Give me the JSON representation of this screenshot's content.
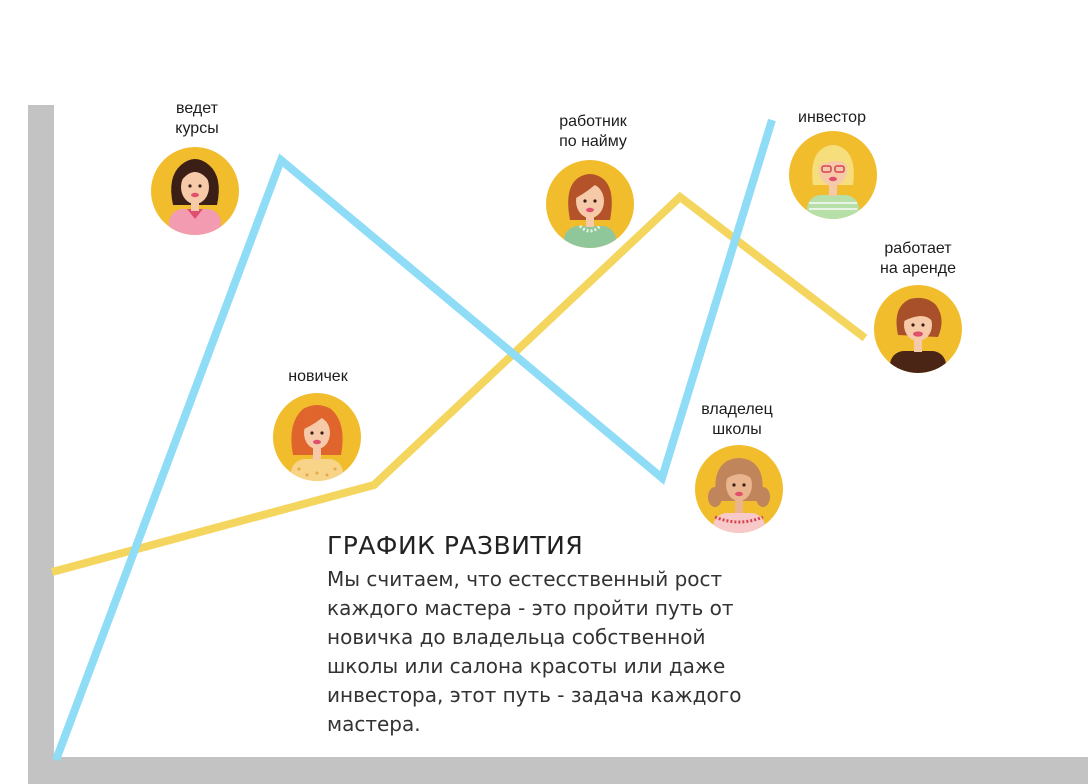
{
  "colors": {
    "blue_line": "#8fdcf7",
    "yellow_line": "#f4d65e",
    "axis": "#c3c3c3",
    "avatar_background": "#f2bd2c"
  },
  "labels": {
    "courses": "ведет\nкурсы",
    "employee": "работник\nпо найму",
    "investor": "инвестор",
    "renter": "работает\nна аренде",
    "novice": "новичек",
    "owner": "владелец\nшколы"
  },
  "title": "ГРАФИК РАЗВИТИЯ",
  "description": "Мы считаем, что естесственный рост каждого мастера - это пройти путь от новичка до владельца собственной школы или салона красоты или даже инвестора, этот путь - задача каждого мастера."
}
